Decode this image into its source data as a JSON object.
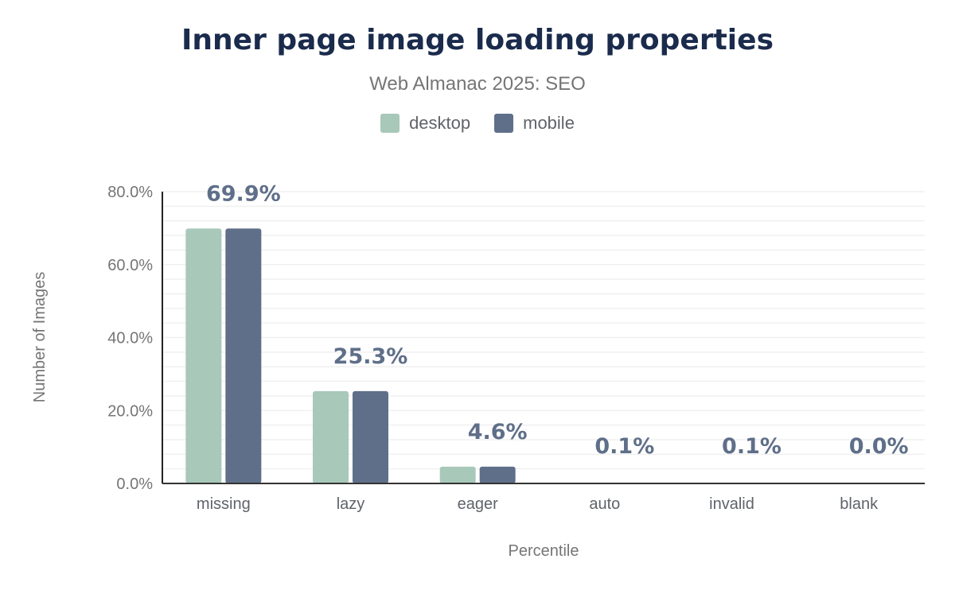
{
  "chart_data": {
    "type": "bar",
    "title": "Inner page image loading properties",
    "subtitle": "Web Almanac 2025: SEO",
    "xlabel": "Percentile",
    "ylabel": "Number of Images",
    "categories": [
      "missing",
      "lazy",
      "eager",
      "auto",
      "invalid",
      "blank"
    ],
    "series": [
      {
        "name": "desktop",
        "color": "#a8c8b9",
        "values": [
          69.9,
          25.3,
          4.6,
          0.1,
          0.1,
          0.0
        ]
      },
      {
        "name": "mobile",
        "color": "#5f6f89",
        "values": [
          69.9,
          25.3,
          4.6,
          0.1,
          0.1,
          0.0
        ]
      }
    ],
    "data_labels": [
      "69.9%",
      "25.3%",
      "4.6%",
      "0.1%",
      "0.1%",
      "0.0%"
    ],
    "yticks": [
      "0.0%",
      "20.0%",
      "40.0%",
      "60.0%",
      "80.0%"
    ],
    "ylim": [
      0,
      80
    ],
    "grid": true,
    "legend_position": "top"
  }
}
